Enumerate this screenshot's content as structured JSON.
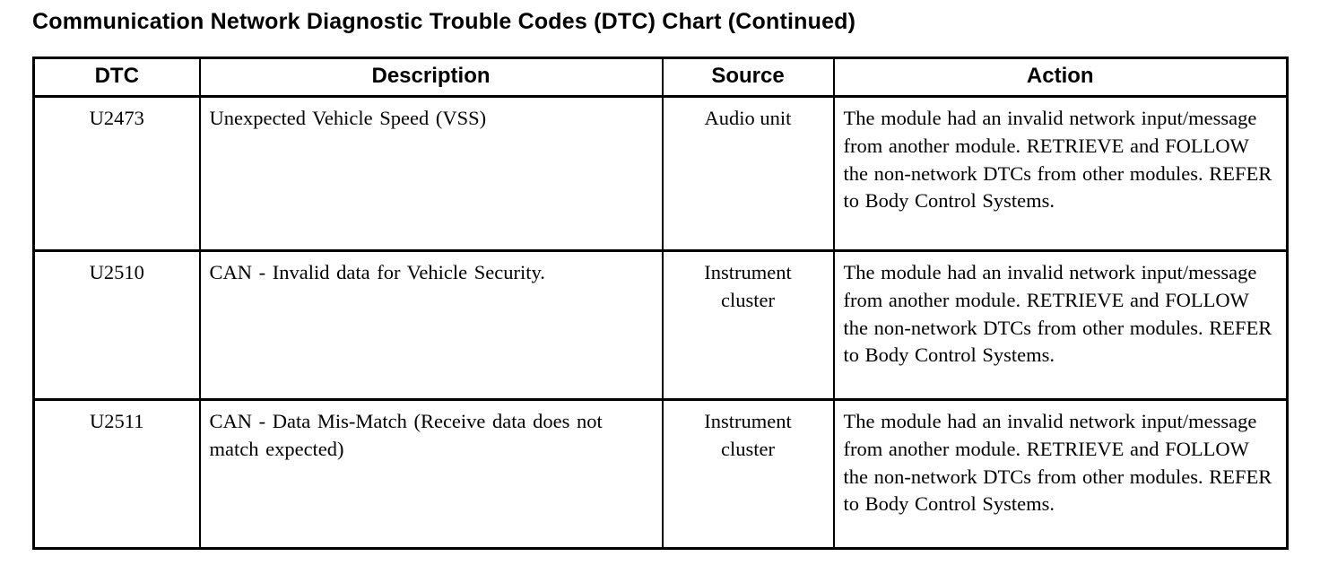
{
  "page": {
    "title": "Communication Network Diagnostic Trouble Codes (DTC) Chart (Continued)"
  },
  "table": {
    "headers": [
      "DTC",
      "Description",
      "Source",
      "Action"
    ],
    "rows": [
      {
        "dtc": "U2473",
        "description": "Unexpected Vehicle Speed (VSS)",
        "source": "Audio unit",
        "action": "The module had an invalid network input/message from another module. RETRIEVE and FOLLOW the non-network DTCs from other modules. REFER to Body Control Systems."
      },
      {
        "dtc": "U2510",
        "description": "CAN - Invalid data for Vehicle Security.",
        "source": "Instrument cluster",
        "action": "The module had an invalid network input/message from another module. RETRIEVE and FOLLOW the non-network DTCs from other modules. REFER to Body Control Systems."
      },
      {
        "dtc": "U2511",
        "description": "CAN - Data Mis-Match (Receive data does not match expected)",
        "source": "Instrument cluster",
        "action": "The module had an invalid network input/message from another module. RETRIEVE and FOLLOW the non-network DTCs from other modules. REFER to Body Control Systems."
      }
    ]
  }
}
